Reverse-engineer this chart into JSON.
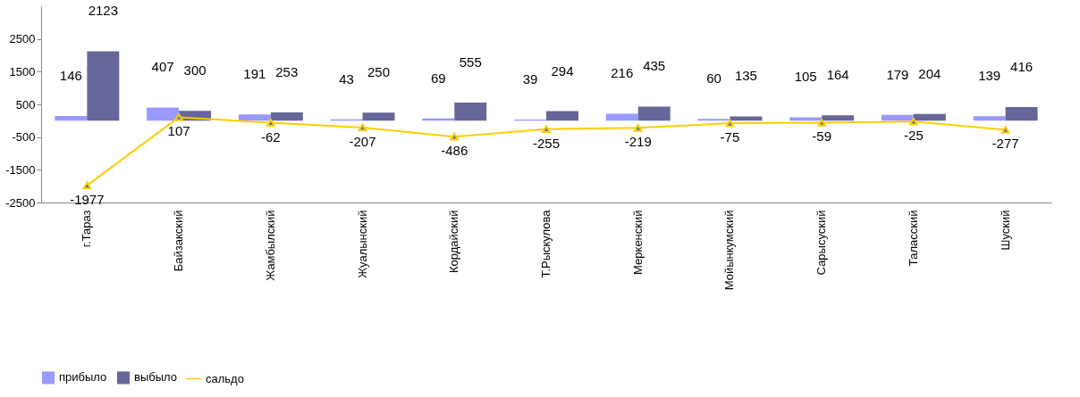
{
  "chart_data": {
    "type": "bar",
    "categories": [
      "г.Тараз",
      "Байзакский",
      "Жамбылский",
      "Жуалынский",
      "Кордайский",
      "Т.Рыскулова",
      "Меркенский",
      "Мойынкумский",
      "Сарысуский",
      "Таласский",
      "Шуский"
    ],
    "series": [
      {
        "name": "прибыло",
        "color": "#9999ff",
        "values": [
          146,
          407,
          191,
          43,
          69,
          39,
          216,
          60,
          105,
          179,
          139
        ]
      },
      {
        "name": "выбыло",
        "color": "#666699",
        "values": [
          2123,
          300,
          253,
          250,
          555,
          294,
          435,
          135,
          164,
          204,
          416
        ]
      },
      {
        "name": "сальдо",
        "type": "line",
        "color": "#ffcc00",
        "marker": "triangle",
        "values": [
          -1977,
          107,
          -62,
          -207,
          -486,
          -255,
          -219,
          -75,
          -59,
          -25,
          -277
        ]
      }
    ],
    "ylim": [
      -2500,
      3500
    ],
    "yticks": [
      -2500,
      -1500,
      -500,
      500,
      1500,
      2500
    ],
    "data_labels": true,
    "grid": false,
    "legend": "bottom"
  }
}
